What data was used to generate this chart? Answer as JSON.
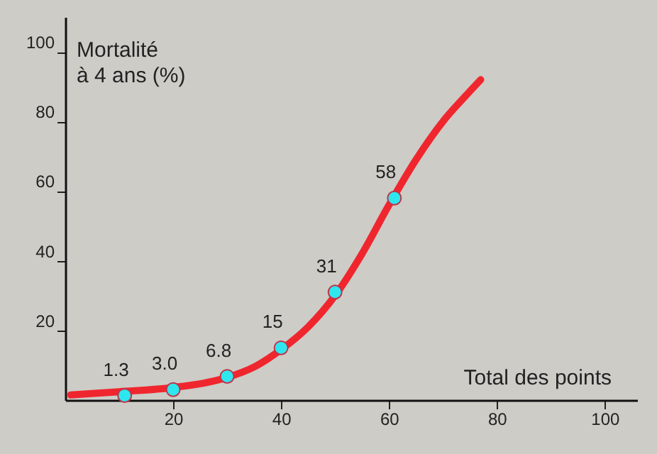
{
  "chart_data": {
    "type": "line",
    "xlabel": "Total des points",
    "ylabel": "Mortalité\nà 4 ans (%)",
    "xlim": [
      0,
      106
    ],
    "ylim": [
      0,
      110
    ],
    "xticks": [
      20,
      40,
      60,
      80,
      100
    ],
    "yticks": [
      20,
      40,
      60,
      80,
      100
    ],
    "grid": false,
    "series": [
      {
        "type": "line",
        "color": "#f0262e",
        "x": [
          1,
          10,
          20,
          30,
          35,
          40,
          45,
          50,
          55,
          60,
          65,
          70,
          74,
          77
        ],
        "values": [
          1.5,
          2.4,
          3.6,
          6.5,
          9.5,
          14.5,
          21,
          30,
          42,
          56,
          69,
          80,
          87,
          92
        ],
        "marker": "none",
        "line_style": "solid"
      },
      {
        "type": "scatter",
        "color": "#2ee6ee",
        "x": [
          11,
          20,
          30,
          40,
          50,
          61
        ],
        "values": [
          1.3,
          3.0,
          6.8,
          15,
          31,
          58
        ],
        "value_labels": [
          "1.3",
          "3.0",
          "6.8",
          "15",
          "31",
          "58"
        ],
        "marker": "circle"
      }
    ]
  }
}
